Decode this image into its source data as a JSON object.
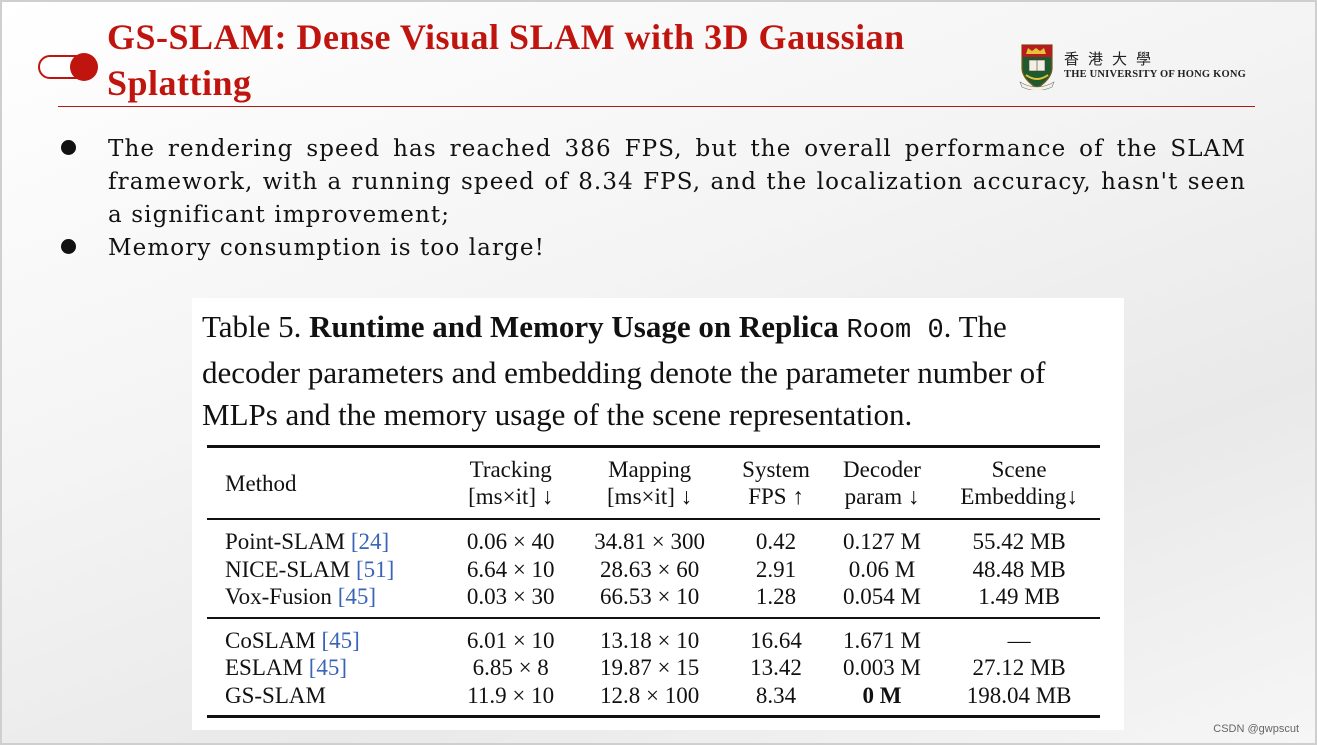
{
  "slide": {
    "title": "GS-SLAM: Dense Visual SLAM with 3D Gaussian Splatting",
    "colors": {
      "accent": "#c0140f",
      "text": "#111111"
    }
  },
  "logo": {
    "chinese": "香港大學",
    "english": "THE UNIVERSITY OF HONG KONG",
    "icon": "hku-crest-icon"
  },
  "bullets": [
    "The rendering speed has reached 386 FPS, but the overall performance of the SLAM framework, with a running speed of 8.34 FPS, and the localization accuracy, hasn't seen a significant improvement;",
    "Memory consumption is too large!"
  ],
  "table": {
    "caption": {
      "prefix": "Table 5.",
      "bold": "Runtime and Memory Usage on Replica",
      "mono": "Room 0",
      "rest": ". The decoder parameters and embedding denote the parameter number of MLPs and the memory usage of the scene representation."
    },
    "headers": {
      "method": "Method",
      "tracking": [
        "Tracking",
        "[ms×it] ↓"
      ],
      "mapping": [
        "Mapping",
        "[ms×it] ↓"
      ],
      "system": [
        "System",
        "FPS ↑"
      ],
      "decoder": [
        "Decoder",
        "param ↓"
      ],
      "scene": [
        "Scene",
        "Embedding↓"
      ]
    },
    "rows": [
      {
        "method": "Point-SLAM ",
        "ref": "[24]",
        "tracking": "0.06 × 40",
        "mapping": "34.81 × 300",
        "fps": "0.42",
        "decoder": "0.127 M",
        "embedding": "55.42 MB"
      },
      {
        "method": "NICE-SLAM ",
        "ref": "[51]",
        "tracking": "6.64 × 10",
        "mapping": "28.63 × 60",
        "fps": "2.91",
        "decoder": "0.06 M",
        "embedding": "48.48 MB"
      },
      {
        "method": "Vox-Fusion ",
        "ref": "[45]",
        "tracking": "0.03 × 30",
        "mapping": "66.53 × 10",
        "fps": "1.28",
        "decoder": "0.054 M",
        "embedding": "1.49 MB"
      },
      {
        "method": "CoSLAM ",
        "ref": "[45]",
        "tracking": "6.01 × 10",
        "mapping": "13.18 × 10",
        "fps": "16.64",
        "decoder": "1.671 M",
        "embedding": "—"
      },
      {
        "method": "ESLAM ",
        "ref": "[45]",
        "tracking": "6.85 × 8",
        "mapping": "19.87 × 15",
        "fps": "13.42",
        "decoder": "0.003 M",
        "embedding": "27.12 MB"
      },
      {
        "method": "GS-SLAM",
        "ref": "",
        "tracking": "11.9 × 10",
        "mapping": "12.8 × 100",
        "fps": "8.34",
        "decoder": "0 M",
        "embedding": "198.04 MB"
      }
    ]
  },
  "watermark": "CSDN @gwpscut"
}
